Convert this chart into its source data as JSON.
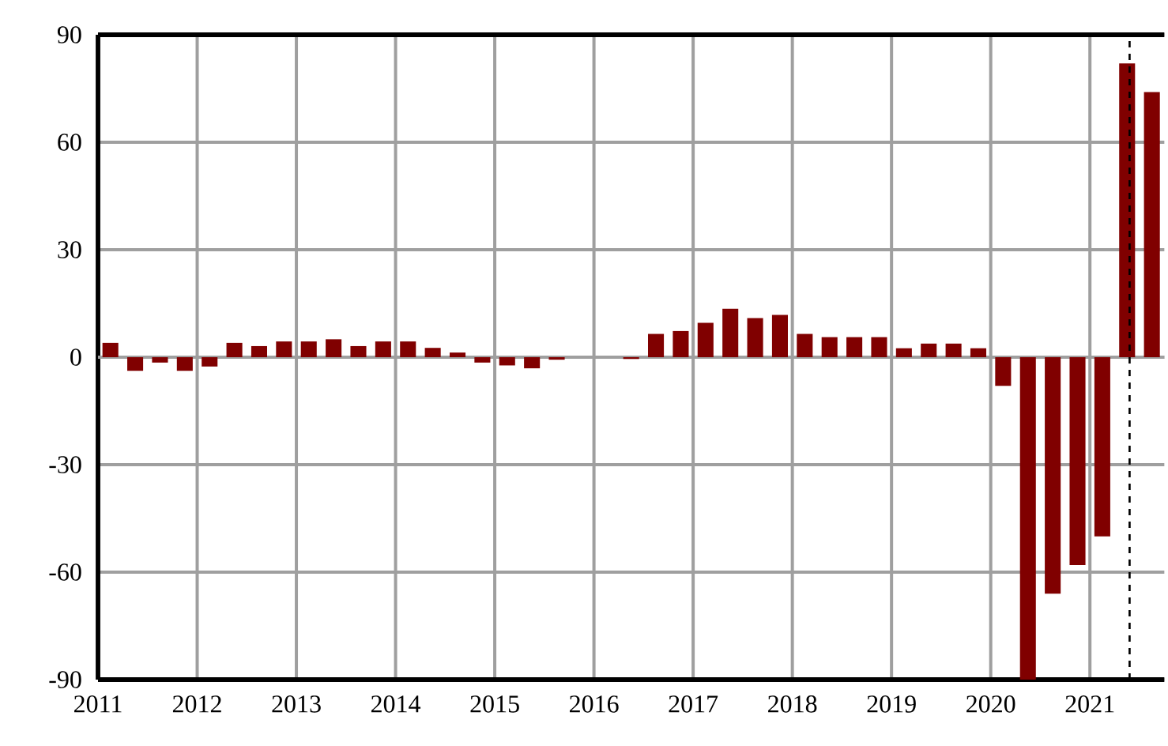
{
  "chart_data": {
    "type": "bar",
    "x": [
      2011.125,
      2011.375,
      2011.625,
      2011.875,
      2012.125,
      2012.375,
      2012.625,
      2012.875,
      2013.125,
      2013.375,
      2013.625,
      2013.875,
      2014.125,
      2014.375,
      2014.625,
      2014.875,
      2015.125,
      2015.375,
      2015.625,
      2015.875,
      2016.125,
      2016.375,
      2016.625,
      2016.875,
      2017.125,
      2017.375,
      2017.625,
      2017.875,
      2018.125,
      2018.375,
      2018.625,
      2018.875,
      2019.125,
      2019.375,
      2019.625,
      2019.875,
      2020.125,
      2020.375,
      2020.625,
      2020.875,
      2021.125,
      2021.375,
      2021.625
    ],
    "values": [
      4.0,
      -3.8,
      -1.5,
      -3.8,
      -2.6,
      4.0,
      3.1,
      4.4,
      4.4,
      5.0,
      3.1,
      4.4,
      4.4,
      2.6,
      1.3,
      -1.5,
      -2.3,
      -3.1,
      -0.7,
      0,
      0,
      -0.5,
      6.5,
      7.3,
      9.6,
      13.5,
      10.9,
      11.8,
      6.5,
      5.6,
      5.6,
      5.6,
      2.5,
      3.8,
      3.8,
      2.5,
      -8,
      -90,
      -66,
      -58,
      -50,
      82,
      74
    ],
    "color": "#800000",
    "xlim": [
      2011,
      2021.75
    ],
    "xticks": [
      2011,
      2012,
      2013,
      2014,
      2015,
      2016,
      2017,
      2018,
      2019,
      2020,
      2021
    ],
    "ylim": [
      -90,
      90
    ],
    "yticks": [
      -90,
      -60,
      -30,
      0,
      30,
      60,
      90
    ],
    "grid": true,
    "ref_lines": [
      {
        "axis": "x",
        "value": 2021.4,
        "color": "#000000",
        "line_style": "dashed"
      }
    ]
  }
}
